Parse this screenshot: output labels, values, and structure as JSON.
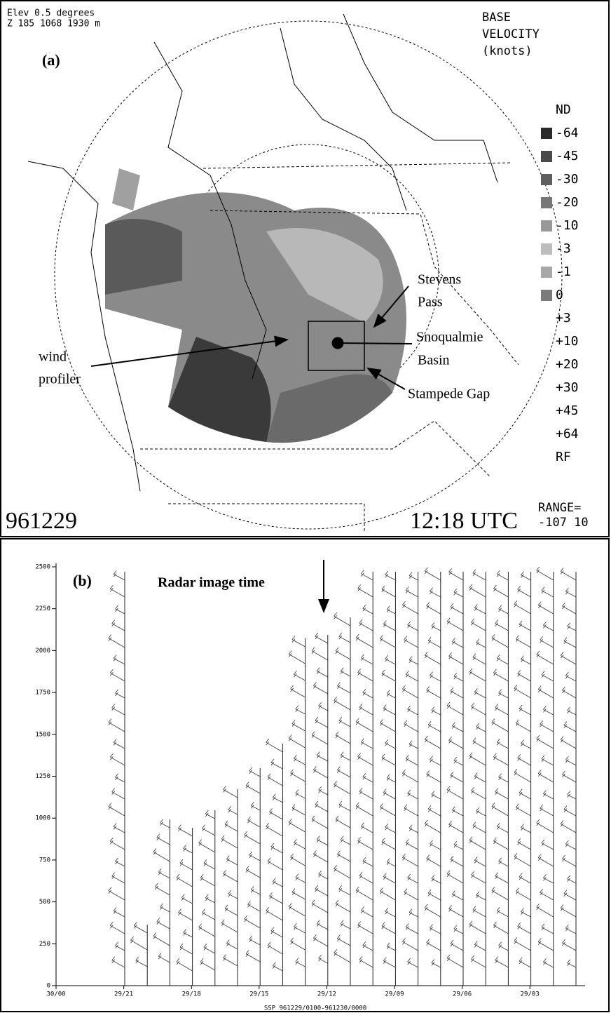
{
  "panel_a": {
    "label": "(a)",
    "header_lines": [
      "Elev 0.5 degrees",
      "Z 185 1068 1930 m"
    ],
    "title_lines": [
      "BASE",
      "VELOCITY",
      "(knots)"
    ],
    "legend": [
      {
        "label": "ND"
      },
      {
        "label": "-64",
        "color": "#2a2a2a"
      },
      {
        "label": "-45",
        "color": "#4a4a4a"
      },
      {
        "label": "-30",
        "color": "#5e5e5e"
      },
      {
        "label": "-20",
        "color": "#777777"
      },
      {
        "label": "-10",
        "color": "#999999"
      },
      {
        "label": "-3",
        "color": "#bdbdbd"
      },
      {
        "label": "-1",
        "color": "#a8a8a8"
      },
      {
        "label": "0",
        "color": "#7a7a7a"
      },
      {
        "label": "+3"
      },
      {
        "label": "+10"
      },
      {
        "label": "+20"
      },
      {
        "label": "+30"
      },
      {
        "label": "+45"
      },
      {
        "label": "+64"
      },
      {
        "label": "RF"
      }
    ],
    "stevens_pass": [
      "Stevens",
      "Pass"
    ],
    "snoqualmie_basin": [
      "Snoqualmie",
      "Basin"
    ],
    "stampede_gap": "Stampede Gap",
    "wind_profiler": [
      "wind",
      "profiler"
    ],
    "date": "961229",
    "time": "12:18 UTC",
    "range_lines": [
      "RANGE=",
      "-107 10"
    ]
  },
  "panel_b": {
    "label": "(b)",
    "annotation": "Radar image time",
    "yticks": [
      0,
      250,
      500,
      750,
      1000,
      1250,
      1500,
      1750,
      2000,
      2250,
      2500
    ],
    "xticks": [
      "30/00",
      "29/21",
      "29/18",
      "29/15",
      "29/12",
      "29/09",
      "29/06",
      "29/03"
    ],
    "footer": "SSP 961229/0100-961230/0000"
  }
}
